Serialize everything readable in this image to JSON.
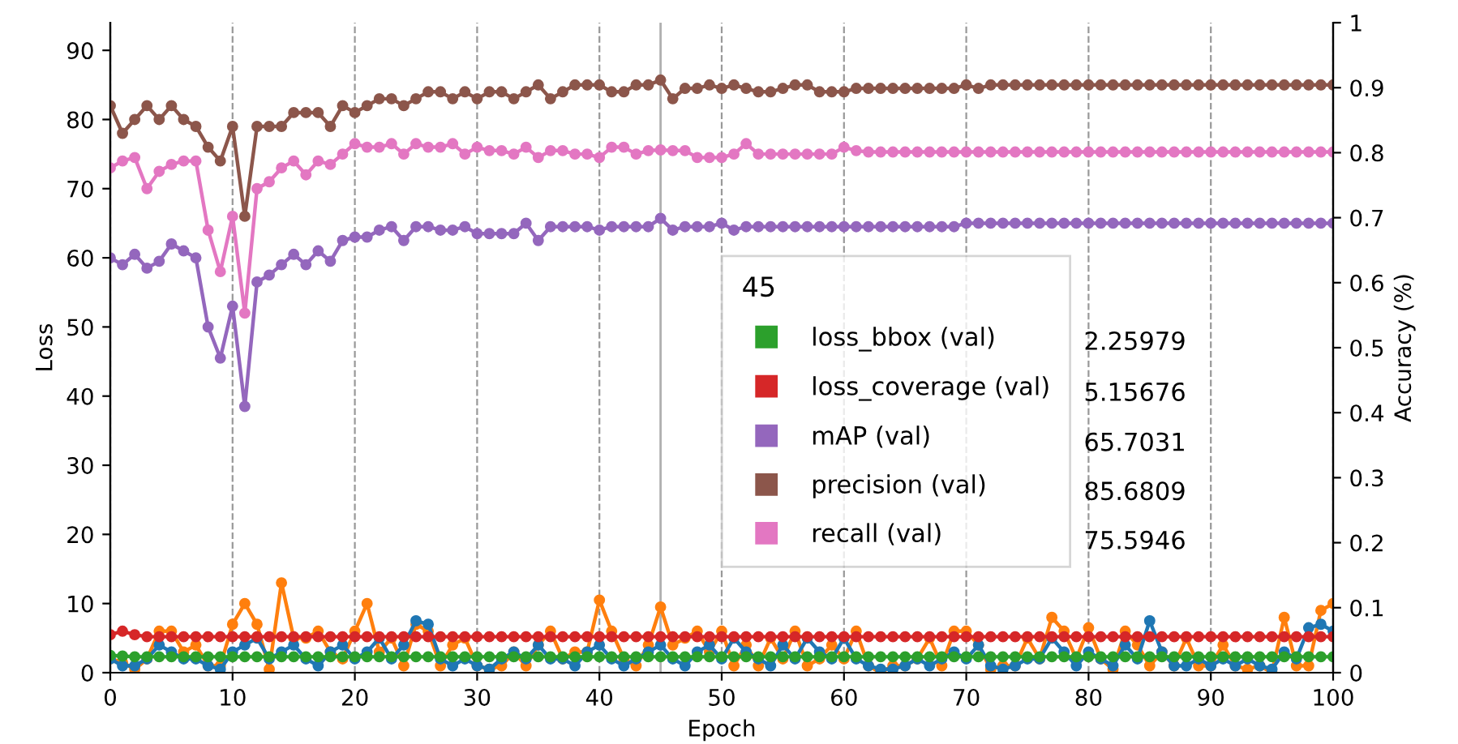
{
  "chart_data": {
    "type": "line",
    "xlabel": "Epoch",
    "ylabel": "Loss",
    "y2label": "Accuracy (%)",
    "legend_title": "45",
    "legend": "center",
    "grid": "x",
    "marker": "circle",
    "line_style": "solid",
    "x": [
      0,
      1,
      2,
      3,
      4,
      5,
      6,
      7,
      8,
      9,
      10,
      11,
      12,
      13,
      14,
      15,
      16,
      17,
      18,
      19,
      20,
      21,
      22,
      23,
      24,
      25,
      26,
      27,
      28,
      29,
      30,
      31,
      32,
      33,
      34,
      35,
      36,
      37,
      38,
      39,
      40,
      41,
      42,
      43,
      44,
      45,
      46,
      47,
      48,
      49,
      50,
      51,
      52,
      53,
      54,
      55,
      56,
      57,
      58,
      59,
      60,
      61,
      62,
      63,
      64,
      65,
      66,
      67,
      68,
      69,
      70,
      71,
      72,
      73,
      74,
      75,
      76,
      77,
      78,
      79,
      80,
      81,
      82,
      83,
      84,
      85,
      86,
      87,
      88,
      89,
      90,
      91,
      92,
      93,
      94,
      95,
      96,
      97,
      98,
      99,
      100
    ],
    "xlim": [
      0,
      100
    ],
    "xticks": [
      0,
      10,
      20,
      30,
      40,
      50,
      60,
      70,
      80,
      90,
      100
    ],
    "ylim": [
      0,
      94
    ],
    "yticks": [
      0,
      10,
      20,
      30,
      40,
      50,
      60,
      70,
      80,
      90
    ],
    "y2lim": [
      0,
      1
    ],
    "y2ticks": [
      0,
      0.1,
      0.2,
      0.3,
      0.4,
      0.5,
      0.6,
      0.7,
      0.8,
      0.9,
      1
    ],
    "ref_lines": [
      {
        "axis": "x",
        "value": 45,
        "color": "#b0b0b0",
        "line_style": "solid"
      }
    ],
    "annotations": [
      "2.25979",
      "5.15676",
      "65.7031",
      "85.6809",
      "75.5946"
    ],
    "series": [
      {
        "color": "#ff7f0e",
        "values": [
          2,
          1.5,
          0.5,
          2,
          6,
          6,
          3,
          4,
          1,
          1,
          7,
          10,
          7,
          0.5,
          13,
          5,
          5,
          6,
          3,
          2,
          6,
          10,
          3,
          5,
          1,
          7,
          6,
          1,
          4,
          5,
          1,
          0.5,
          1,
          3,
          1,
          4,
          6,
          2,
          3,
          3,
          10.5,
          6,
          2,
          1,
          4,
          9.5,
          4,
          5,
          6,
          3,
          6,
          1,
          4,
          1,
          5,
          2,
          6,
          1,
          2,
          4,
          2,
          6,
          1,
          0,
          1,
          1,
          2,
          5,
          1,
          6,
          6,
          4,
          0.5,
          1,
          1,
          5,
          2,
          8,
          6,
          2,
          6.5,
          2,
          0.5,
          6,
          4,
          1,
          3,
          1,
          5,
          1,
          1,
          4,
          1,
          0.5,
          1,
          0,
          8,
          1,
          1,
          9,
          10
        ]
      },
      {
        "color": "#1f77b4",
        "values": [
          2,
          1,
          1,
          2,
          4,
          3,
          2,
          2,
          1,
          0.5,
          3,
          4,
          5,
          2,
          3,
          4,
          2,
          1,
          3,
          4,
          2,
          3,
          5,
          2,
          4,
          7.5,
          7,
          2,
          1,
          2,
          1,
          0.5,
          2,
          3,
          2,
          4,
          2,
          2,
          1,
          3,
          4,
          2,
          1,
          2,
          3,
          4,
          2,
          1,
          3,
          4,
          2,
          5,
          3,
          2,
          1,
          4,
          2,
          5,
          3,
          2,
          5,
          2,
          1,
          0.5,
          0.5,
          1,
          2,
          1,
          2,
          3,
          2,
          4,
          1,
          0.5,
          1,
          2,
          2,
          5,
          3,
          1,
          3,
          2,
          1,
          4,
          2,
          7.5,
          3,
          1,
          1,
          2,
          1,
          2,
          1,
          2,
          1,
          0.5,
          3,
          2,
          6.5,
          7,
          6
        ]
      },
      {
        "name": "loss_bbox (val)",
        "color": "#2ca02c",
        "values": [
          2.5,
          2.4,
          2.3,
          2.3,
          2.3,
          2.3,
          2.3,
          2.3,
          2.3,
          2.3,
          2.3,
          2.3,
          2.3,
          2.3,
          2.3,
          2.3,
          2.3,
          2.3,
          2.3,
          2.3,
          2.3,
          2.3,
          2.3,
          2.3,
          2.3,
          2.3,
          2.3,
          2.3,
          2.3,
          2.3,
          2.3,
          2.3,
          2.3,
          2.3,
          2.3,
          2.3,
          2.3,
          2.3,
          2.3,
          2.3,
          2.3,
          2.3,
          2.3,
          2.3,
          2.3,
          2.3,
          2.3,
          2.3,
          2.3,
          2.3,
          2.3,
          2.3,
          2.3,
          2.3,
          2.3,
          2.3,
          2.3,
          2.3,
          2.3,
          2.3,
          2.3,
          2.3,
          2.3,
          2.3,
          2.3,
          2.3,
          2.3,
          2.3,
          2.3,
          2.3,
          2.3,
          2.3,
          2.3,
          2.3,
          2.3,
          2.3,
          2.3,
          2.3,
          2.3,
          2.3,
          2.3,
          2.3,
          2.3,
          2.3,
          2.3,
          2.3,
          2.3,
          2.3,
          2.3,
          2.3,
          2.3,
          2.3,
          2.3,
          2.3,
          2.3,
          2.3,
          2.3,
          2.3,
          2.3,
          2.3,
          2.3
        ]
      },
      {
        "name": "loss_coverage (val)",
        "color": "#d62728",
        "values": [
          5.5,
          6,
          5.5,
          5.2,
          5.2,
          5.2,
          5.2,
          5.2,
          5.2,
          5.2,
          5.2,
          5.2,
          5.2,
          5.2,
          5.2,
          5.2,
          5.2,
          5.2,
          5.2,
          5.2,
          5.2,
          5.2,
          5.2,
          5.2,
          5.2,
          5.2,
          5.2,
          5.2,
          5.2,
          5.2,
          5.2,
          5.2,
          5.2,
          5.2,
          5.2,
          5.2,
          5.2,
          5.2,
          5.2,
          5.2,
          5.2,
          5.2,
          5.2,
          5.2,
          5.2,
          5.2,
          5.2,
          5.2,
          5.2,
          5.2,
          5.2,
          5.2,
          5.2,
          5.2,
          5.2,
          5.2,
          5.2,
          5.2,
          5.2,
          5.2,
          5.2,
          5.2,
          5.2,
          5.2,
          5.2,
          5.2,
          5.2,
          5.2,
          5.2,
          5.2,
          5.2,
          5.2,
          5.2,
          5.2,
          5.2,
          5.2,
          5.2,
          5.2,
          5.2,
          5.2,
          5.2,
          5.2,
          5.2,
          5.2,
          5.2,
          5.2,
          5.2,
          5.2,
          5.2,
          5.2,
          5.2,
          5.2,
          5.2,
          5.2,
          5.2,
          5.2,
          5.2,
          5.2,
          5.2,
          5.2,
          5.2
        ]
      },
      {
        "name": "mAP (val)",
        "color": "#9467bd",
        "values": [
          60,
          59,
          60.5,
          58.5,
          59.5,
          62,
          61,
          60,
          50,
          45.5,
          53,
          38.5,
          56.5,
          57.5,
          59,
          60.5,
          59,
          61,
          59.5,
          62.5,
          63,
          63,
          64,
          64.5,
          62.5,
          64.5,
          64.5,
          64,
          64,
          64.5,
          63.5,
          63.5,
          63.5,
          63.5,
          65,
          62.5,
          64.5,
          64.5,
          64.5,
          64.5,
          64,
          64.5,
          64.5,
          64.5,
          64.5,
          65.7,
          64,
          64.5,
          64.5,
          64.5,
          65,
          64,
          64.5,
          64.5,
          64.5,
          64.5,
          64.5,
          64.5,
          64.5,
          64.5,
          64.5,
          64.5,
          64.5,
          64.5,
          64.5,
          64.5,
          64.5,
          64.5,
          64.5,
          64.5,
          65,
          65,
          65,
          65,
          65,
          65,
          65,
          65,
          65,
          65,
          65,
          65,
          65,
          65,
          65,
          65,
          65,
          65,
          65,
          65,
          65,
          65,
          65,
          65,
          65,
          65,
          65,
          65,
          65,
          65,
          65
        ]
      },
      {
        "name": "precision (val)",
        "color": "#8c564b",
        "values": [
          82,
          78,
          80,
          82,
          80,
          82,
          80,
          79,
          76,
          74,
          79,
          66,
          79,
          79,
          79,
          81,
          81,
          81,
          79,
          82,
          81,
          82,
          83,
          83,
          82,
          83,
          84,
          84,
          83,
          84,
          83,
          84,
          84,
          83,
          84,
          85,
          83,
          84,
          85,
          85,
          85,
          84,
          84,
          85,
          85,
          85.7,
          83,
          84.5,
          84.5,
          85,
          84.5,
          85,
          84.5,
          84,
          84,
          84.5,
          85,
          85,
          84,
          84,
          84,
          84.5,
          84.5,
          84.5,
          84.5,
          84.5,
          84.5,
          84.5,
          84.5,
          84.5,
          85,
          84.5,
          85,
          85,
          85,
          85,
          85,
          85,
          85,
          85,
          85,
          85,
          85,
          85,
          85,
          85,
          85,
          85,
          85,
          85,
          85,
          85,
          85,
          85,
          85,
          85,
          85,
          85,
          85,
          85,
          85
        ]
      },
      {
        "name": "recall (val)",
        "color": "#e377c2",
        "values": [
          73,
          74,
          74.5,
          70,
          72.5,
          73.5,
          74,
          74,
          64,
          58,
          66,
          52,
          70,
          71,
          73,
          74,
          72,
          74,
          73.5,
          75,
          76.5,
          76,
          76,
          76.5,
          75,
          76.5,
          76,
          76,
          76.5,
          75,
          76,
          75.5,
          75.5,
          75,
          76,
          74.5,
          75.5,
          75.5,
          75,
          75,
          74.5,
          76,
          76,
          75,
          75.5,
          75.6,
          75.5,
          75.5,
          74.5,
          74.5,
          74.5,
          75,
          76.5,
          75,
          75,
          75,
          75,
          75,
          75,
          75,
          76,
          75.5,
          75.3,
          75.3,
          75.3,
          75.3,
          75.3,
          75.3,
          75.3,
          75.3,
          75.3,
          75.3,
          75.3,
          75.3,
          75.3,
          75.3,
          75.3,
          75.3,
          75.3,
          75.3,
          75.3,
          75.3,
          75.3,
          75.3,
          75.3,
          75.3,
          75.3,
          75.3,
          75.3,
          75.3,
          75.3,
          75.3,
          75.3,
          75.3,
          75.3,
          75.3,
          75.3,
          75.3,
          75.3,
          75.3,
          75.3
        ]
      }
    ]
  }
}
